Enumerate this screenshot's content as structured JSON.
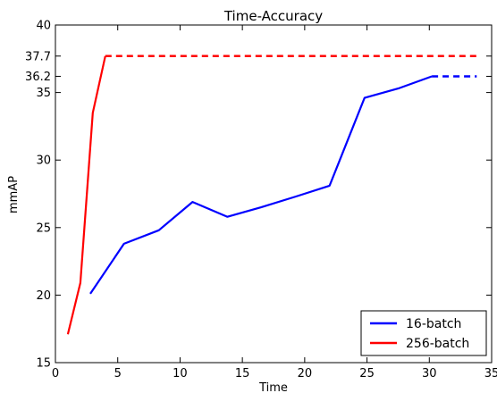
{
  "chart_data": {
    "type": "line",
    "title": "Time-Accuracy",
    "xlabel": "Time",
    "ylabel": "mmAP",
    "xlim": [
      0,
      35
    ],
    "ylim": [
      15,
      40
    ],
    "xticks": [
      "0",
      "5",
      "10",
      "15",
      "20",
      "25",
      "30",
      "35"
    ],
    "yticks": [
      {
        "value": 15,
        "label": "15"
      },
      {
        "value": 20,
        "label": "20"
      },
      {
        "value": 25,
        "label": "25"
      },
      {
        "value": 30,
        "label": "30"
      },
      {
        "value": 35,
        "label": "35"
      },
      {
        "value": 36.2,
        "label": "36.2"
      },
      {
        "value": 37.7,
        "label": "37.7"
      },
      {
        "value": 40,
        "label": "40"
      }
    ],
    "grid": false,
    "legend": "bottom-right",
    "series": [
      {
        "name": "16-batch",
        "color": "#0000ff",
        "x": [
          2.8,
          5.5,
          8.3,
          11.0,
          13.8,
          16.5,
          19.3,
          22.0,
          24.8,
          27.5,
          30.2
        ],
        "y": [
          20.1,
          23.8,
          24.8,
          26.9,
          25.8,
          26.5,
          27.3,
          28.1,
          34.6,
          35.3,
          36.2
        ],
        "extension_x": [
          30.2,
          33.8
        ],
        "extension_y": [
          36.2,
          36.2
        ]
      },
      {
        "name": "256-batch",
        "color": "#ff0000",
        "x": [
          1.0,
          2.0,
          3.0,
          4.0
        ],
        "y": [
          17.1,
          20.9,
          33.5,
          37.7
        ],
        "extension_x": [
          4.0,
          33.8
        ],
        "extension_y": [
          37.7,
          37.7
        ]
      }
    ]
  }
}
